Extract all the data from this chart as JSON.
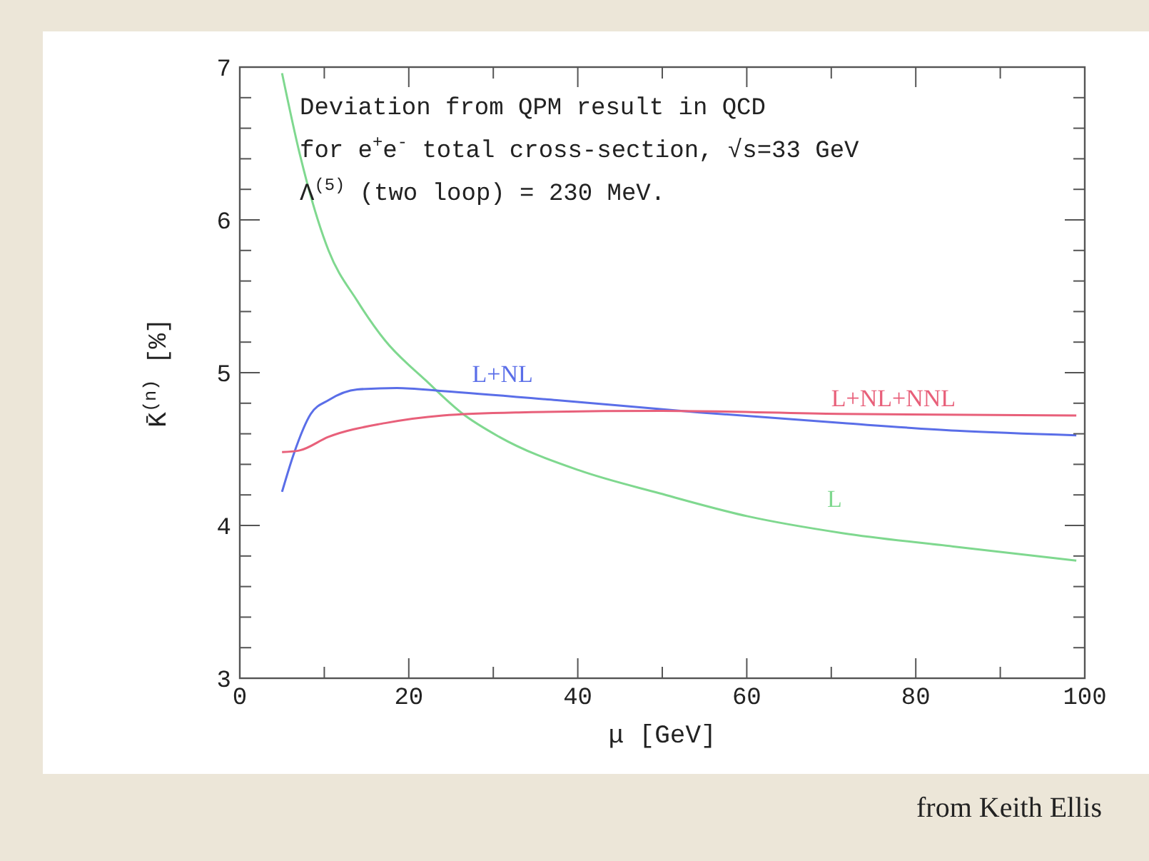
{
  "chart_data": {
    "type": "line",
    "xlabel": "μ [GeV]",
    "ylabel": "K̄$^{(n)}$ [%]",
    "xlim": [
      0,
      100
    ],
    "ylim": [
      3,
      7
    ],
    "xticks": [
      0,
      {
        "value": 10,
        "label": null
      },
      20,
      {
        "value": 30,
        "label": null
      },
      40,
      {
        "value": 50,
        "label": null
      },
      60,
      {
        "value": 70,
        "label": null
      },
      80,
      {
        "value": 90,
        "label": null
      },
      100
    ],
    "yticks": [
      3,
      {
        "value": 3.2,
        "label": null
      },
      {
        "value": 3.4,
        "label": null
      },
      {
        "value": 3.6,
        "label": null
      },
      {
        "value": 3.8,
        "label": null
      },
      4,
      {
        "value": 4.2,
        "label": null
      },
      {
        "value": 4.4,
        "label": null
      },
      {
        "value": 4.6,
        "label": null
      },
      {
        "value": 4.8,
        "label": null
      },
      5,
      {
        "value": 5.2,
        "label": null
      },
      {
        "value": 5.4,
        "label": null
      },
      {
        "value": 5.6,
        "label": null
      },
      {
        "value": 5.8,
        "label": null
      },
      6,
      {
        "value": 6.2,
        "label": null
      },
      {
        "value": 6.4,
        "label": null
      },
      {
        "value": 6.6,
        "label": null
      },
      {
        "value": 6.8,
        "label": null
      },
      7
    ],
    "grid": false,
    "marker": "none",
    "line_style": "solid",
    "series": [
      {
        "name": "L",
        "color": "#7fd88f",
        "x": [
          5,
          7.1,
          10.5,
          13.9,
          17.2,
          22,
          26.4,
          30.7,
          40.2,
          49.7,
          60.1,
          71.3,
          84.8,
          99
        ],
        "values": [
          6.96,
          6.43,
          5.8,
          5.47,
          5.21,
          4.95,
          4.73,
          4.58,
          4.36,
          4.21,
          4.06,
          3.95,
          3.86,
          3.77
        ]
      },
      {
        "name": "L+NL",
        "color": "#5a6ee8",
        "x": [
          5,
          6.4,
          8.4,
          10.5,
          13.9,
          18.6,
          24,
          37.5,
          54.4,
          71.3,
          84.8,
          99
        ],
        "values": [
          4.22,
          4.47,
          4.73,
          4.82,
          4.89,
          4.9,
          4.88,
          4.82,
          4.74,
          4.67,
          4.62,
          4.59
        ]
      },
      {
        "name": "L+NL+NNL",
        "color": "#e8607a",
        "x": [
          5,
          7,
          10.5,
          17.2,
          24,
          33,
          50,
          71,
          99
        ],
        "values": [
          4.48,
          4.49,
          4.58,
          4.67,
          4.72,
          4.74,
          4.75,
          4.73,
          4.72
        ]
      }
    ],
    "annotations": [
      "Deviation from QPM result in QCD",
      "for e$^{+}$e$^{-}$ total cross-section, √s=33 GeV",
      "Λ$^{(5)}$ (two loop) = 230 MeV.",
      "from Keith Ellis"
    ]
  }
}
